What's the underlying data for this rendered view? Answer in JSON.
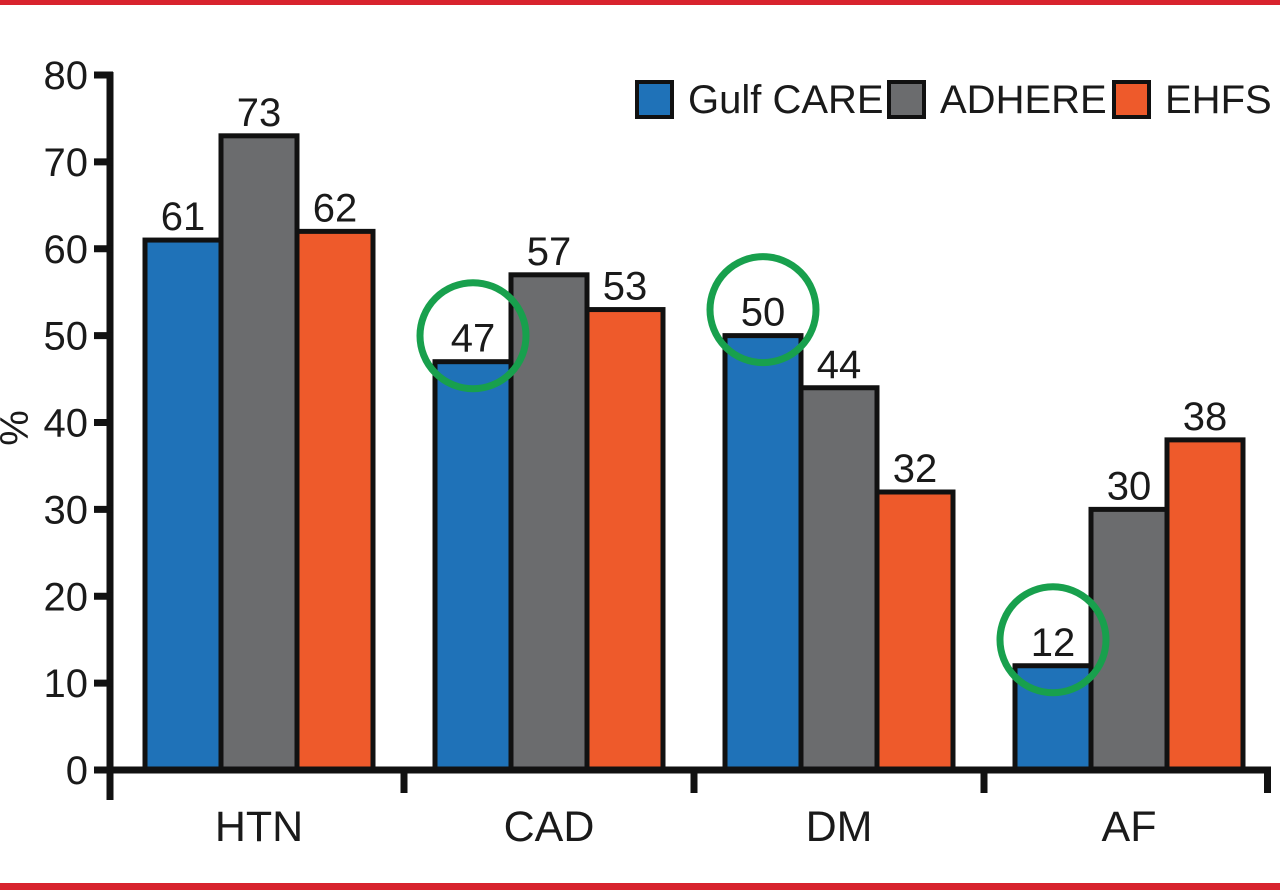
{
  "figure": {
    "top_rule_color": "#D8232E",
    "bottom_rule_color": "#D8232E",
    "background_color": "#FFFFFF"
  },
  "chart_data": {
    "type": "bar",
    "title": "",
    "xlabel": "",
    "ylabel": "%",
    "ylim": [
      0,
      80
    ],
    "yticks": [
      0,
      10,
      20,
      30,
      40,
      50,
      60,
      70,
      80
    ],
    "grid": false,
    "legend_position": "top-right",
    "categories": [
      "HTN",
      "CAD",
      "DM",
      "AF"
    ],
    "series": [
      {
        "name": "Gulf CARE",
        "color": "#1F72B8",
        "values": [
          61,
          47,
          50,
          12
        ]
      },
      {
        "name": "ADHERE",
        "color": "#6B6C6E",
        "values": [
          73,
          57,
          44,
          30
        ]
      },
      {
        "name": "EHFS II",
        "color": "#EE5A2B",
        "values": [
          62,
          53,
          32,
          38
        ]
      }
    ],
    "bar_outline_color": "#111111",
    "axis_color": "#111111",
    "value_labels_shown": true,
    "annotations": {
      "circle_color": "#18A04D",
      "circled": [
        {
          "series": "Gulf CARE",
          "category": "CAD",
          "value": 47
        },
        {
          "series": "Gulf CARE",
          "category": "DM",
          "value": 50
        },
        {
          "series": "Gulf CARE",
          "category": "AF",
          "value": 12
        }
      ]
    }
  }
}
